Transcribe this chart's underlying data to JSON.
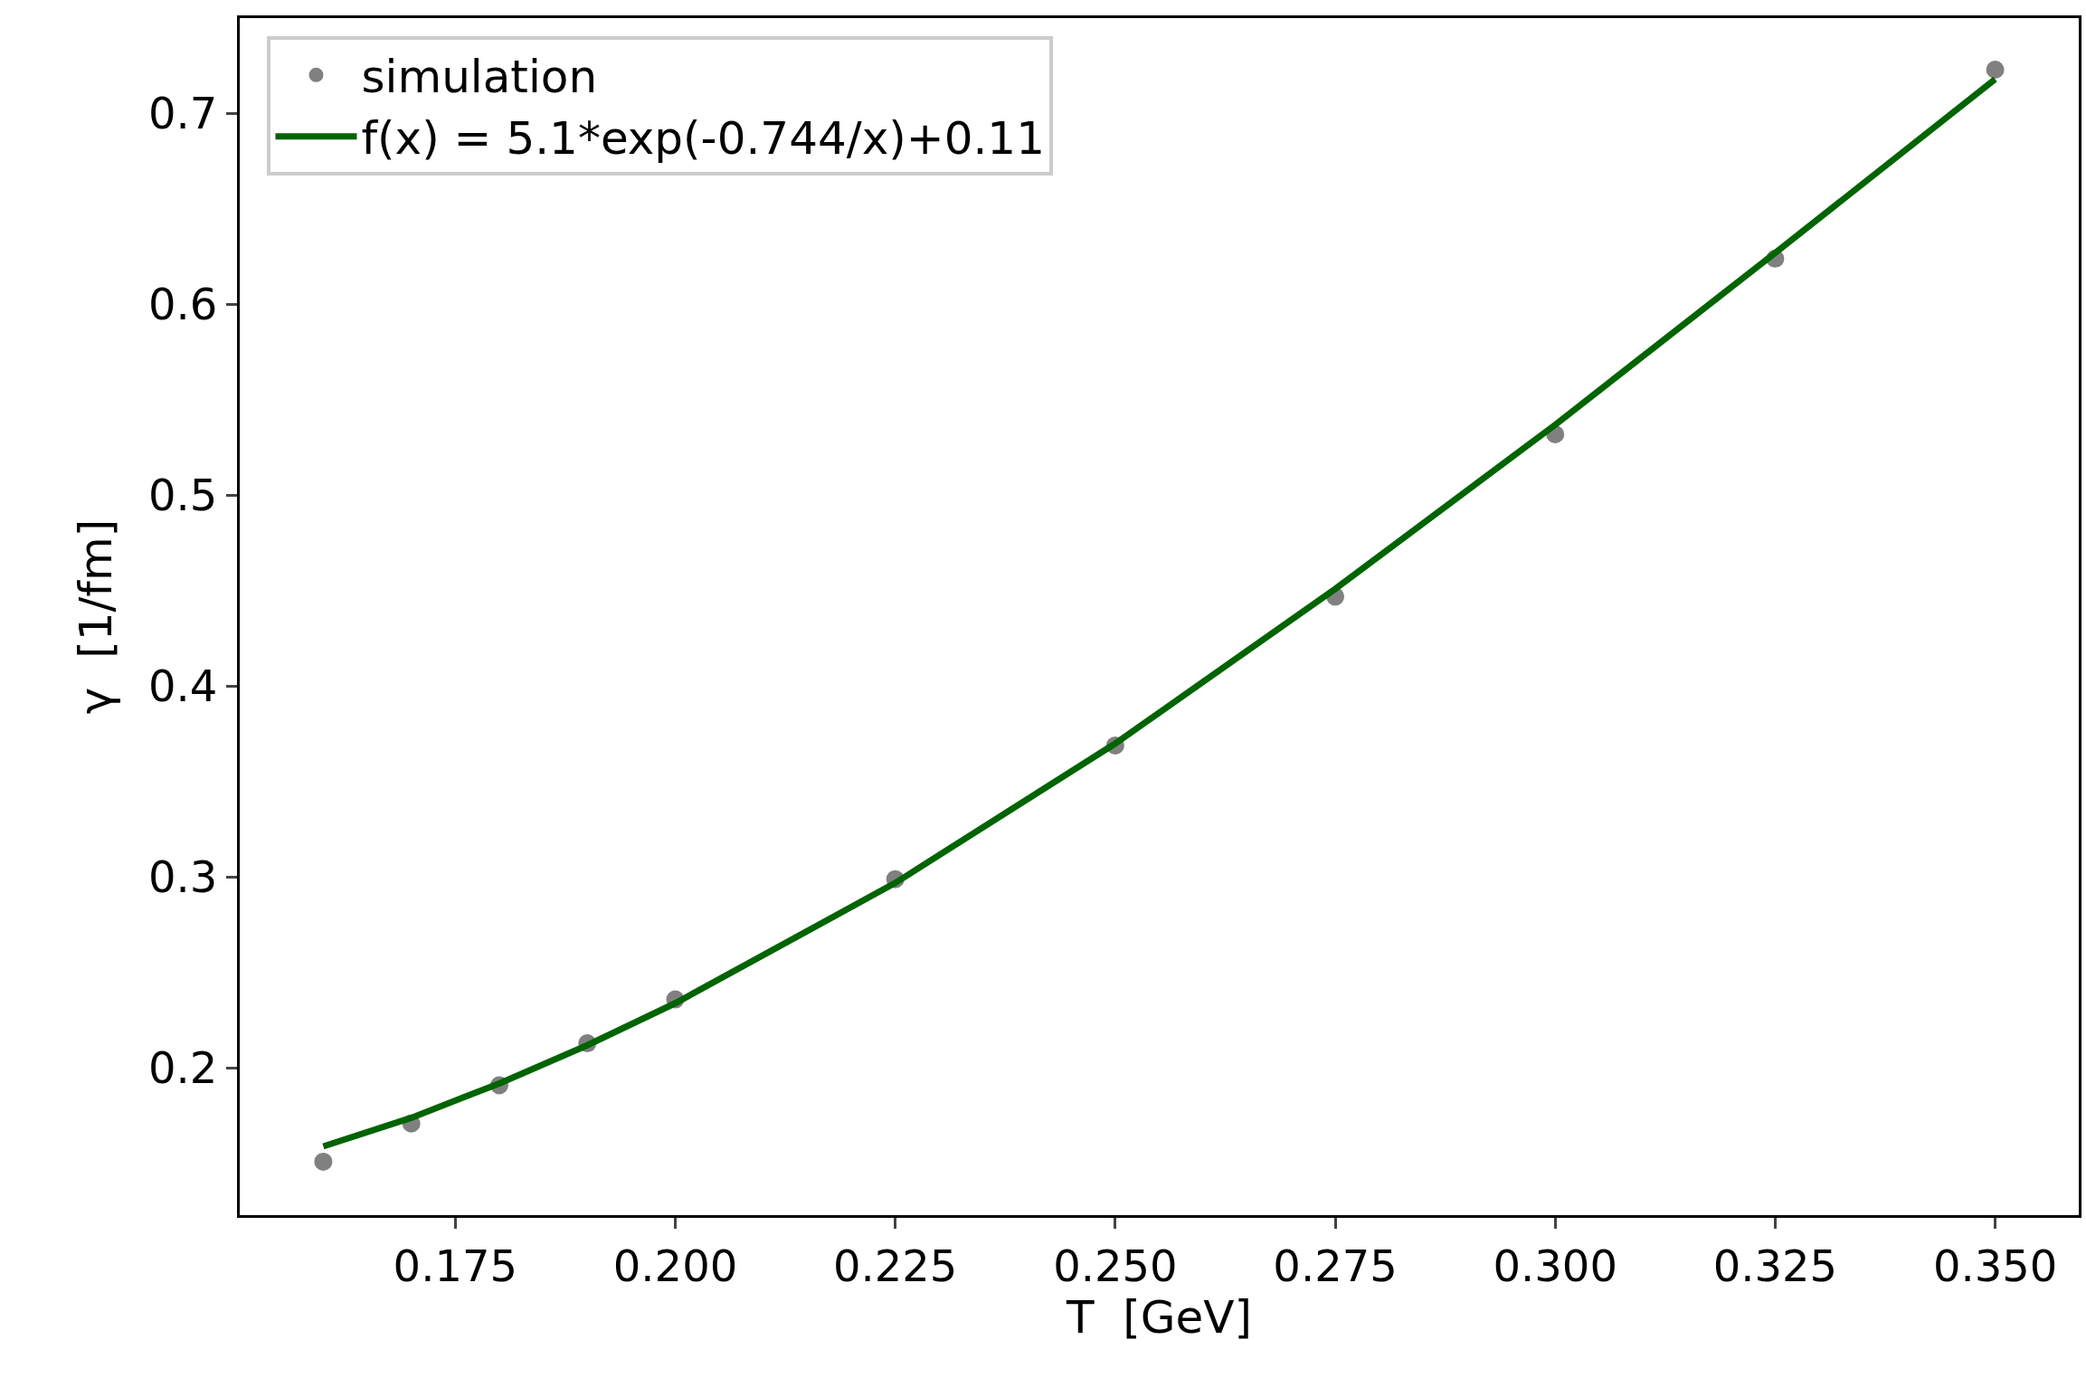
{
  "chart_data": {
    "type": "scatter",
    "xlabel": "T  [GeV]",
    "ylabel": "γ  [1/fm]",
    "x": [
      0.16,
      0.17,
      0.18,
      0.19,
      0.2,
      0.225,
      0.25,
      0.275,
      0.3,
      0.325,
      0.35
    ],
    "series": [
      {
        "name": "simulation",
        "color": "#808080",
        "marker": "circle",
        "values": [
          0.151,
          0.171,
          0.191,
          0.213,
          0.236,
          0.299,
          0.369,
          0.447,
          0.532,
          0.624,
          0.723
        ]
      },
      {
        "name": "f(x) = 5.1*exp(-0.744/x)+0.11",
        "type": "line",
        "color": "#006400",
        "marker": "none",
        "line_style": "solid",
        "values": [
          0.159,
          0.174,
          0.192,
          0.212,
          0.234,
          0.297,
          0.37,
          0.451,
          0.537,
          0.627,
          0.718
        ]
      }
    ],
    "xlim": [
      0.1505,
      0.3595
    ],
    "xticks": [
      {
        "value": 0.175,
        "label": "0.175"
      },
      {
        "value": 0.2,
        "label": "0.200"
      },
      {
        "value": 0.225,
        "label": "0.225"
      },
      {
        "value": 0.25,
        "label": "0.250"
      },
      {
        "value": 0.275,
        "label": "0.275"
      },
      {
        "value": 0.3,
        "label": "0.300"
      },
      {
        "value": 0.325,
        "label": "0.325"
      },
      {
        "value": 0.35,
        "label": "0.350"
      }
    ],
    "ylim": [
      0.123,
      0.75
    ],
    "yticks": [
      0.2,
      0.3,
      0.4,
      0.5,
      0.6,
      0.7
    ],
    "grid": false,
    "legend": "top left"
  }
}
